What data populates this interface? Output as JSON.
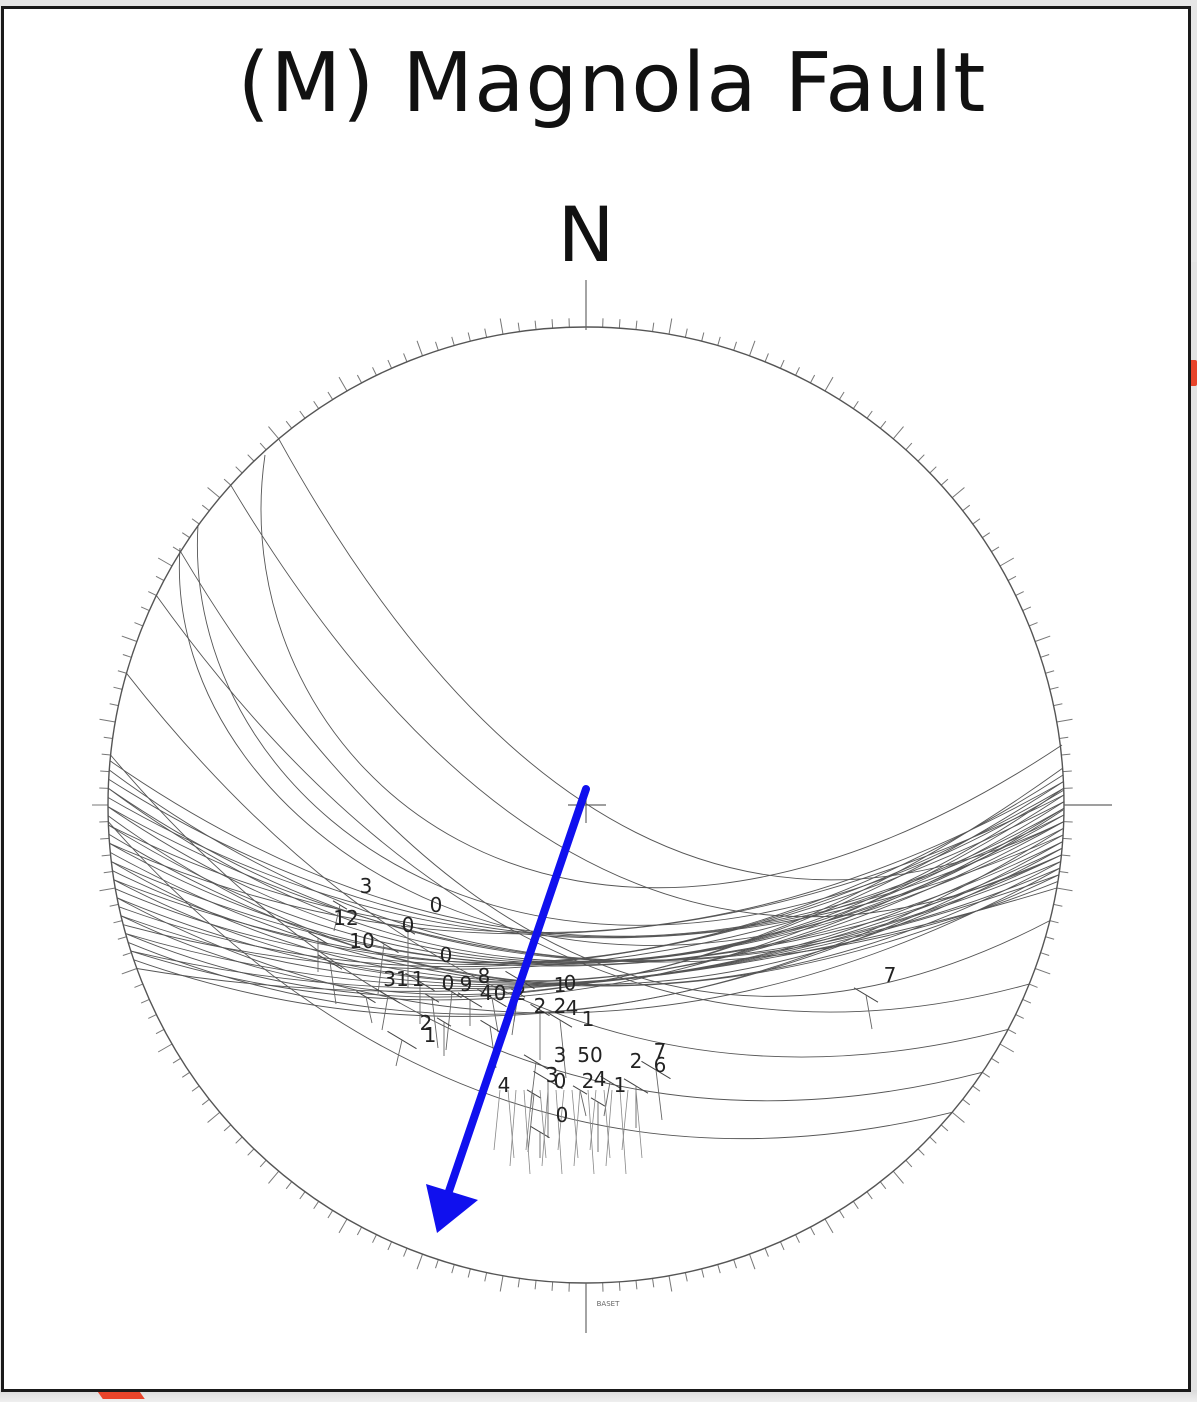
{
  "figure": {
    "title": "(M) Magnola Fault",
    "north_label": "N",
    "bottom_label": "BASET"
  },
  "plane_labels": [
    "3",
    "12",
    "0",
    "0",
    "10",
    "0",
    "31",
    "1",
    "0",
    "9",
    "8",
    "4",
    "0",
    "2",
    "1",
    "0",
    "2",
    "2",
    "4",
    "1",
    "2",
    "1",
    "3",
    "50",
    "2",
    "7",
    "3",
    "0",
    "4",
    "2",
    "1",
    "6",
    "4",
    "0",
    "7"
  ],
  "slip_arrow": {
    "color": "#1010ee"
  },
  "colors": {
    "great_circles": "#444444",
    "primitive_circle": "#555555",
    "frame": "#1a1a1a",
    "accent_red": "#e8442a"
  }
}
